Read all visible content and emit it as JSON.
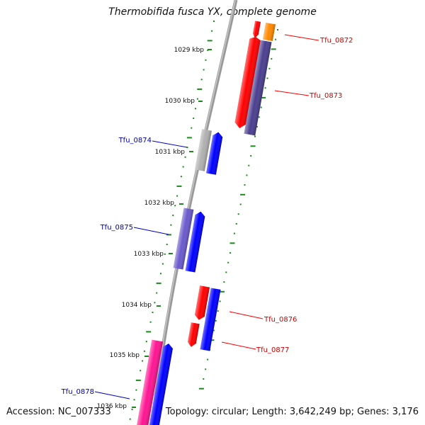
{
  "title": "Thermobifida fusca YX, complete genome",
  "footer": {
    "accession": "Accession: NC_007333",
    "info": "Topology: circular; Length: 3,642,249 bp; Genes: 3,176"
  },
  "colors": {
    "red": "#ff0000",
    "orange": "#ff8800",
    "dark_slate": "#4a3f8f",
    "grey": "#b0b0b0",
    "blue": "#0000ff",
    "slate_blue": "#6a5acd",
    "magenta": "#ff1493",
    "tick": "#1a8a1a",
    "backbone": "#888888",
    "label_red": "#cc0000",
    "label_blue": "#0000aa"
  },
  "kbp_labels": [
    "1029 kbp",
    "1030 kbp",
    "1031 kbp",
    "1032 kbp",
    "1033 kbp",
    "1034 kbp",
    "1035 kbp",
    "1036 kbp"
  ],
  "gene_labels": [
    {
      "name": "Tfu_0872",
      "strand": "forward"
    },
    {
      "name": "Tfu_0873",
      "strand": "forward"
    },
    {
      "name": "Tfu_0874",
      "strand": "reverse"
    },
    {
      "name": "Tfu_0875",
      "strand": "reverse"
    },
    {
      "name": "Tfu_0876",
      "strand": "forward"
    },
    {
      "name": "Tfu_0877",
      "strand": "forward"
    },
    {
      "name": "Tfu_0878",
      "strand": "reverse"
    }
  ]
}
